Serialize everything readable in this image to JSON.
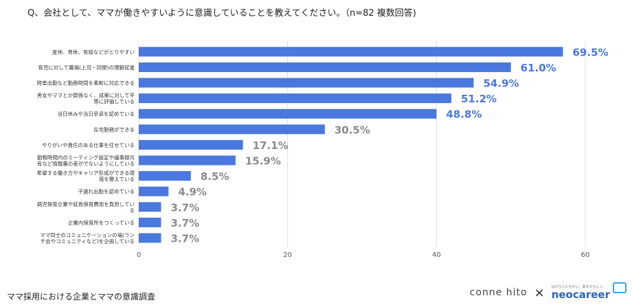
{
  "header": {
    "question": "Q、会社として、ママが働きやすいように意識していることを教えてください。（n=82 複数回答)"
  },
  "footer": {
    "title": "ママ採用における企業とママの意識調査",
    "logo_left": "conne hito",
    "logo_separator": "×",
    "logo_right_small": "はたらくにむかい、あなたらしく。",
    "logo_right": "neocareer"
  },
  "colors": {
    "bar": "#4a78de",
    "value_label": "#4a78de",
    "value_label_muted": "#8a8a8a",
    "grid": "#dddddd",
    "axis_label": "#555555"
  },
  "chart_data": {
    "type": "bar",
    "orientation": "horizontal",
    "categories": [
      "産休、育休、有給などがとりやすい",
      "育児に対して職場(上司・同僚)の理解促進",
      "時差出勤など勤務時間を柔軟に対応できる",
      "男女やママとか関係なく、成果に対して平等に評価している",
      "当日休みや当日早退を認めている",
      "在宅勤務ができる",
      "やりがいや責任のある仕事を任せている",
      "勤務時間内のミーティング設定や議事録共有など情報量の差がでないようにしている",
      "希望する働き方やキャリア形成ができる環境を整えている",
      "子連れ出勤を認めている",
      "病児保育企業や延長保育費用を負担している",
      "企業内保育所をつくっている",
      "ママ同士のコミュニケーションの場(ランチ会やコミュニティなど)を企画している"
    ],
    "category_lines": [
      [
        "産休、育休、有給などがとりやすい"
      ],
      [
        "育児に対して職場(上司・同僚)の理解促進"
      ],
      [
        "時差出勤など勤務時間を柔軟に対応できる"
      ],
      [
        "男女やママとか関係なく、成果に対して平",
        "等に評価している"
      ],
      [
        "当日休みや当日早退を認めている"
      ],
      [
        "在宅勤務ができる"
      ],
      [
        "やりがいや責任のある仕事を任せている"
      ],
      [
        "勤務時間内のミーティング設定や議事録共",
        "有など情報量の差がでないようにしている"
      ],
      [
        "希望する働き方やキャリア形成ができる環",
        "境を整えている"
      ],
      [
        "子連れ出勤を認めている"
      ],
      [
        "病児保育企業や延長保育費用を負担してい",
        "る"
      ],
      [
        "企業内保育所をつくっている"
      ],
      [
        "ママ同士のコミュニケーションの場(ラン",
        "チ会やコミュニティなど)を企画している"
      ]
    ],
    "values": [
      57,
      50,
      45,
      42,
      40,
      25,
      14,
      13,
      7,
      4,
      3,
      3,
      3
    ],
    "value_labels": [
      "69.5%",
      "61.0%",
      "54.9%",
      "51.2%",
      "48.8%",
      "30.5%",
      "17.1%",
      "15.9%",
      "8.5%",
      "4.9%",
      "3.7%",
      "3.7%",
      "3.7%"
    ],
    "label_highlight": [
      true,
      true,
      true,
      true,
      true,
      false,
      false,
      false,
      false,
      false,
      false,
      false,
      false
    ],
    "xlim": [
      0,
      60
    ],
    "xticks": [
      0,
      20,
      40,
      60
    ],
    "grid": true,
    "legend": "none"
  }
}
